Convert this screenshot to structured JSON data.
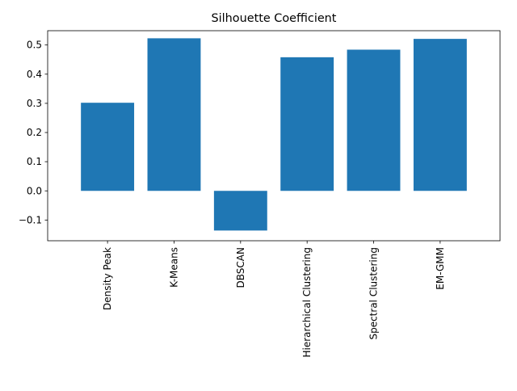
{
  "chart_data": {
    "type": "bar",
    "title": "Silhouette Coefficient",
    "xlabel": "",
    "ylabel": "",
    "categories": [
      "Density Peak",
      "K-Means",
      "DBSCAN",
      "Hierarchical Clustering",
      "Spectral Clustering",
      "EM-GMM"
    ],
    "values": [
      0.302,
      0.523,
      -0.136,
      0.458,
      0.484,
      0.521
    ],
    "ylim": [
      -0.171,
      0.549
    ],
    "yticks": [
      -0.1,
      0.0,
      0.1,
      0.2,
      0.3,
      0.4,
      0.5
    ],
    "ytick_labels": [
      "−0.1",
      "0.0",
      "0.1",
      "0.2",
      "0.3",
      "0.4",
      "0.5"
    ],
    "bar_color": "#1f77b4",
    "grid": false,
    "legend": "none"
  }
}
